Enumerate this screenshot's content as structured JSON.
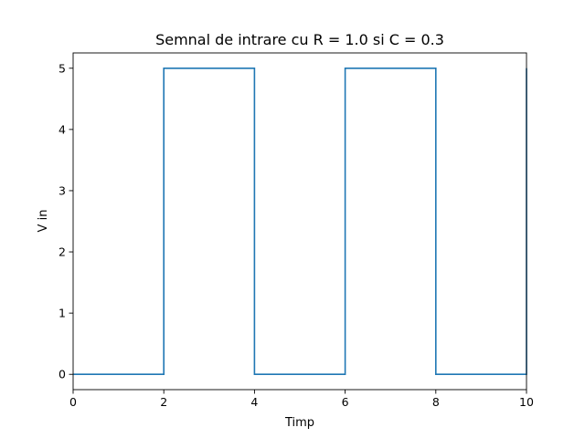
{
  "chart_data": {
    "type": "line",
    "title": "Semnal de intrare cu R = 1.0 si C = 0.3",
    "xlabel": "Timp",
    "ylabel": "V in",
    "xlim": [
      0,
      10
    ],
    "ylim": [
      -0.25,
      5.25
    ],
    "xticks": [
      0,
      2,
      4,
      6,
      8,
      10
    ],
    "yticks": [
      0,
      1,
      2,
      3,
      4,
      5
    ],
    "grid": false,
    "series": [
      {
        "color": "#1f77b4",
        "x": [
          0,
          2,
          2,
          4,
          4,
          6,
          6,
          8,
          8,
          10,
          10
        ],
        "y": [
          0,
          0,
          5,
          5,
          0,
          0,
          5,
          5,
          0,
          0,
          5
        ]
      }
    ]
  }
}
